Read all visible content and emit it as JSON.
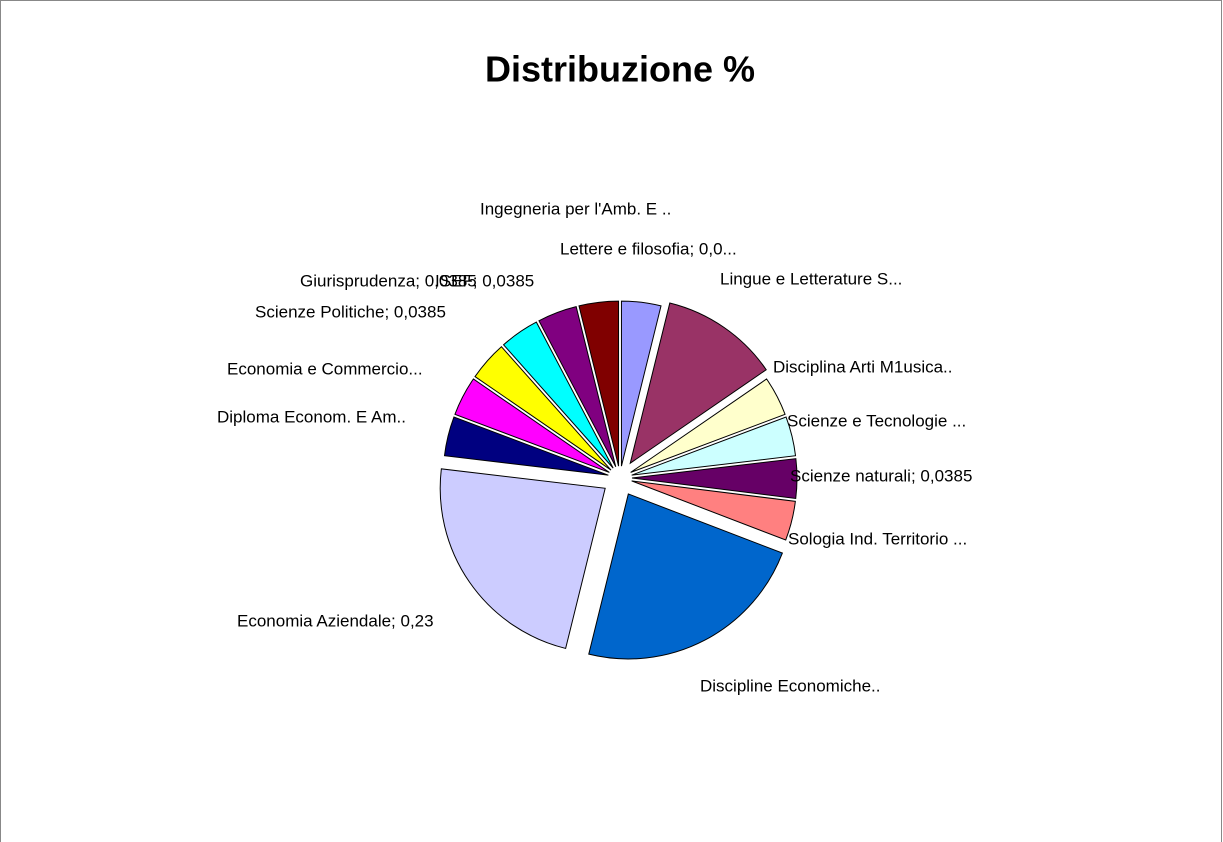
{
  "chart_data": {
    "type": "pie",
    "title": "Distribuzione %",
    "categories": [
      "Lettere e filosofia; 0,0...",
      "Lingue e Letterature S...",
      "Disciplina Arti M1usica..",
      "Scienze e Tecnologie ...",
      "Scienze naturali; 0,0385",
      "Sologia Ind. Territorio ...",
      "Discipline Economiche..",
      "Economia Aziendale; 0,23",
      "Diploma Econom. E Am..",
      "Economia e Commercio...",
      "Scienze Politiche; 0,0385",
      "Giurisprudenza; 0,0385",
      "ISEF; 0,0385",
      "Ingegneria per l'Amb. E .."
    ],
    "values": [
      0.0385,
      0.1155,
      0.0385,
      0.0385,
      0.0385,
      0.0385,
      0.23,
      0.23,
      0.0385,
      0.0385,
      0.0385,
      0.0385,
      0.0385,
      0.0385
    ],
    "colors": [
      "#9999ff",
      "#993366",
      "#ffffcc",
      "#ccffff",
      "#660066",
      "#ff8080",
      "#0066cc",
      "#ccccff",
      "#000080",
      "#ff00ff",
      "#ffff00",
      "#00ffff",
      "#800080",
      "#800000"
    ]
  }
}
